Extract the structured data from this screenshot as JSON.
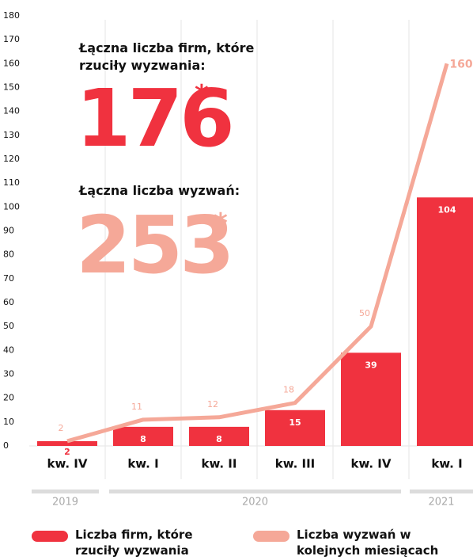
{
  "chart_data": {
    "type": "bar_line",
    "headline_1": "Łączna liczba firm, które rzuciły wyzwania:",
    "big_number_1": "176",
    "asterisk_1": "*",
    "headline_2": "Łączna liczba wyzwań:",
    "big_number_2": "253",
    "asterisk_2": "*",
    "categories": [
      "kw. IV",
      "kw. I",
      "kw. II",
      "kw. III",
      "kw. IV",
      "kw. I"
    ],
    "year_groups": [
      "2019",
      "2020",
      "2021"
    ],
    "series": [
      {
        "name": "Liczba firm, które rzuciły wyzwania",
        "type": "bar",
        "color": "#f0323f",
        "values": [
          2,
          8,
          8,
          15,
          39,
          104
        ]
      },
      {
        "name": "Liczba wyzwań w kolejnych miesiącach",
        "type": "line",
        "color": "#f5a898",
        "values": [
          2,
          11,
          12,
          18,
          50,
          160
        ]
      }
    ],
    "ylim": [
      0,
      180
    ],
    "yticks": [
      0,
      10,
      20,
      30,
      40,
      50,
      60,
      70,
      80,
      90,
      100,
      110,
      120,
      130,
      140,
      150,
      160,
      170,
      180
    ],
    "grid": false
  }
}
